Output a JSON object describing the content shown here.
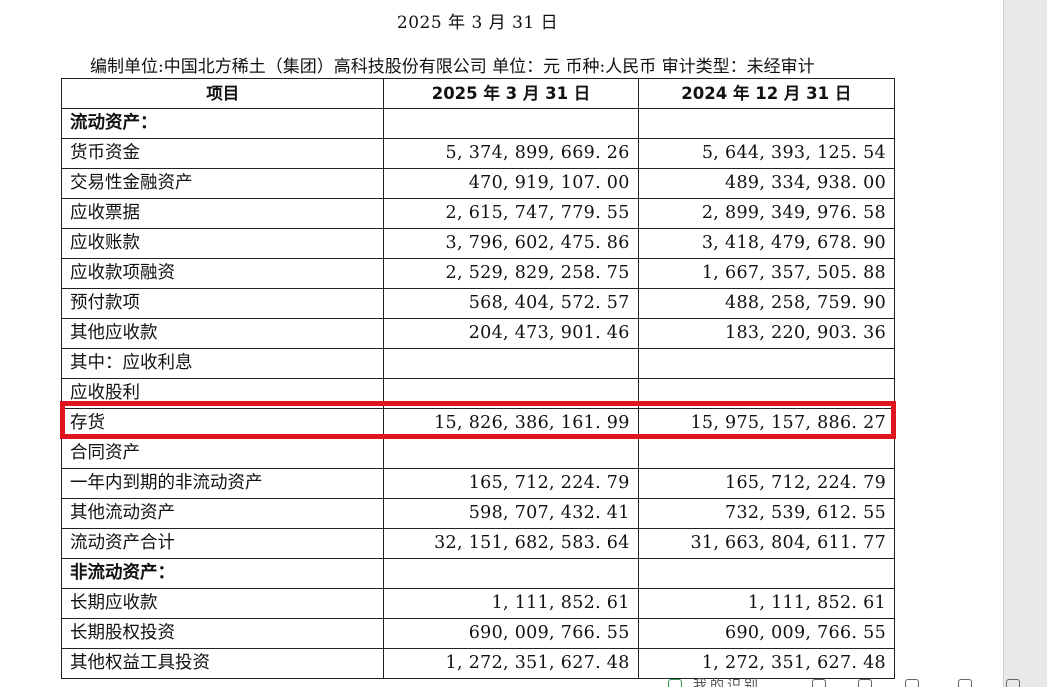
{
  "document": {
    "date_line": "2025 年 3 月 31 日",
    "meta_line": "编制单位:中国北方稀土（集团）高科技股份有限公司   单位：元  币种:人民币  审计类型：未经审计"
  },
  "table": {
    "headers": [
      "项目",
      "2025 年 3 月 31 日",
      "2024 年 12 月 31 日"
    ],
    "rows": [
      {
        "label": "流动资产：",
        "a": "",
        "b": "",
        "kind": "section"
      },
      {
        "label": "货币资金",
        "a": "5, 374, 899, 669. 26",
        "b": "5, 644, 393, 125. 54",
        "kind": "item"
      },
      {
        "label": "交易性金融资产",
        "a": "470, 919, 107. 00",
        "b": "489, 334, 938. 00",
        "kind": "item"
      },
      {
        "label": "应收票据",
        "a": "2, 615, 747, 779. 55",
        "b": "2, 899, 349, 976. 58",
        "kind": "item"
      },
      {
        "label": "应收账款",
        "a": "3, 796, 602, 475. 86",
        "b": "3, 418, 479, 678. 90",
        "kind": "item"
      },
      {
        "label": "应收款项融资",
        "a": "2, 529, 829, 258. 75",
        "b": "1, 667, 357, 505. 88",
        "kind": "item"
      },
      {
        "label": "预付款项",
        "a": "568, 404, 572. 57",
        "b": "488, 258, 759. 90",
        "kind": "item"
      },
      {
        "label": "其他应收款",
        "a": "204, 473, 901. 46",
        "b": "183, 220, 903. 36",
        "kind": "item"
      },
      {
        "label": "其中：应收利息",
        "a": "",
        "b": "",
        "kind": "item"
      },
      {
        "label": "应收股利",
        "a": "",
        "b": "",
        "kind": "sub2"
      },
      {
        "label": "存货",
        "a": "15, 826, 386, 161. 99",
        "b": "15, 975, 157, 886. 27",
        "kind": "item"
      },
      {
        "label": "合同资产",
        "a": "",
        "b": "",
        "kind": "item"
      },
      {
        "label": "一年内到期的非流动资产",
        "a": "165, 712, 224. 79",
        "b": "165, 712, 224. 79",
        "kind": "item"
      },
      {
        "label": "其他流动资产",
        "a": "598, 707, 432. 41",
        "b": "732, 539, 612. 55",
        "kind": "item"
      },
      {
        "label": "流动资产合计",
        "a": "32, 151, 682, 583. 64",
        "b": "31, 663, 804, 611. 77",
        "kind": "total"
      },
      {
        "label": "非流动资产：",
        "a": "",
        "b": "",
        "kind": "section"
      },
      {
        "label": "长期应收款",
        "a": "1, 111, 852. 61",
        "b": "1, 111, 852. 61",
        "kind": "item"
      },
      {
        "label": "长期股权投资",
        "a": "690, 009, 766. 55",
        "b": "690, 009, 766. 55",
        "kind": "item"
      },
      {
        "label": "其他权益工具投资",
        "a": "1, 272, 351, 627. 48",
        "b": "1, 272, 351, 627. 48",
        "kind": "item"
      }
    ]
  },
  "highlight": {
    "row_label": "存货",
    "color": "#e0141e"
  },
  "bottom_toolbar": {
    "text": "我的识别"
  }
}
